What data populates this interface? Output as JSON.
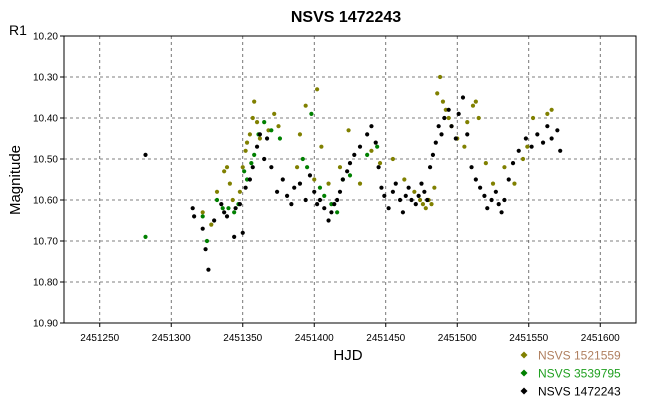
{
  "chart_data": {
    "type": "scatter",
    "title": "NSVS 1472243",
    "corner_label": "R1",
    "xlabel": "HJD",
    "ylabel": "Magnitude",
    "xlim": [
      2451225,
      2451625
    ],
    "ylim": [
      10.2,
      10.9
    ],
    "y_inverted": true,
    "grid": true,
    "legend_position": "bottom-right",
    "x_ticks": [
      {
        "value": 2451250,
        "label": "2451250"
      },
      {
        "value": 2451300,
        "label": "2451300"
      },
      {
        "value": 2451350,
        "label": "2451350"
      },
      {
        "value": 2451400,
        "label": "2451400"
      },
      {
        "value": 2451450,
        "label": "2451450"
      },
      {
        "value": 2451500,
        "label": "2451500"
      },
      {
        "value": 2451550,
        "label": "2451550"
      },
      {
        "value": 2451600,
        "label": "2451600"
      }
    ],
    "y_ticks": [
      {
        "value": 10.2,
        "label": "10.20"
      },
      {
        "value": 10.3,
        "label": "10.30"
      },
      {
        "value": 10.4,
        "label": "10.40"
      },
      {
        "value": 10.5,
        "label": "10.50"
      },
      {
        "value": 10.6,
        "label": "10.60"
      },
      {
        "value": 10.7,
        "label": "10.70"
      },
      {
        "value": 10.8,
        "label": "10.80"
      },
      {
        "value": 10.9,
        "label": "10.90"
      }
    ],
    "series": [
      {
        "name": "NSVS 1521559",
        "color": "#808000",
        "label_color": "#b08060",
        "points": [
          [
            2451322,
            10.63
          ],
          [
            2451328,
            10.66
          ],
          [
            2451332,
            10.58
          ],
          [
            2451337,
            10.53
          ],
          [
            2451339,
            10.52
          ],
          [
            2451341,
            10.56
          ],
          [
            2451343,
            10.6
          ],
          [
            2451348,
            10.58
          ],
          [
            2451350,
            10.52
          ],
          [
            2451352,
            10.48
          ],
          [
            2451353,
            10.46
          ],
          [
            2451355,
            10.44
          ],
          [
            2451357,
            10.4
          ],
          [
            2451358,
            10.36
          ],
          [
            2451360,
            10.41
          ],
          [
            2451362,
            10.45
          ],
          [
            2451368,
            10.43
          ],
          [
            2451372,
            10.39
          ],
          [
            2451375,
            10.42
          ],
          [
            2451388,
            10.52
          ],
          [
            2451390,
            10.44
          ],
          [
            2451394,
            10.37
          ],
          [
            2451400,
            10.55
          ],
          [
            2451402,
            10.33
          ],
          [
            2451405,
            10.47
          ],
          [
            2451410,
            10.56
          ],
          [
            2451418,
            10.52
          ],
          [
            2451424,
            10.43
          ],
          [
            2451432,
            10.56
          ],
          [
            2451440,
            10.48
          ],
          [
            2451446,
            10.51
          ],
          [
            2451455,
            10.5
          ],
          [
            2451463,
            10.55
          ],
          [
            2451470,
            10.58
          ],
          [
            2451474,
            10.6
          ],
          [
            2451476,
            10.61
          ],
          [
            2451478,
            10.62
          ],
          [
            2451480,
            10.6
          ],
          [
            2451482,
            10.61
          ],
          [
            2451484,
            10.57
          ],
          [
            2451486,
            10.34
          ],
          [
            2451488,
            10.3
          ],
          [
            2451490,
            10.36
          ],
          [
            2451492,
            10.38
          ],
          [
            2451494,
            10.4
          ],
          [
            2451496,
            10.42
          ],
          [
            2451500,
            10.45
          ],
          [
            2451505,
            10.47
          ],
          [
            2451507,
            10.41
          ],
          [
            2451511,
            10.37
          ],
          [
            2451513,
            10.36
          ],
          [
            2451515,
            10.4
          ],
          [
            2451520,
            10.51
          ],
          [
            2451525,
            10.56
          ],
          [
            2451533,
            10.52
          ],
          [
            2451540,
            10.56
          ],
          [
            2451546,
            10.5
          ],
          [
            2451549,
            10.47
          ],
          [
            2451553,
            10.4
          ],
          [
            2451563,
            10.39
          ],
          [
            2451566,
            10.38
          ]
        ]
      },
      {
        "name": "NSVS 3539795",
        "color": "#008000",
        "label_color": "#20a020",
        "points": [
          [
            2451282,
            10.69
          ],
          [
            2451322,
            10.64
          ],
          [
            2451325,
            10.7
          ],
          [
            2451332,
            10.6
          ],
          [
            2451336,
            10.62
          ],
          [
            2451340,
            10.62
          ],
          [
            2451344,
            10.63
          ],
          [
            2451347,
            10.61
          ],
          [
            2451351,
            10.53
          ],
          [
            2451353,
            10.55
          ],
          [
            2451356,
            10.51
          ],
          [
            2451358,
            10.49
          ],
          [
            2451361,
            10.44
          ],
          [
            2451365,
            10.41
          ],
          [
            2451370,
            10.43
          ],
          [
            2451376,
            10.45
          ],
          [
            2451392,
            10.5
          ],
          [
            2451395,
            10.52
          ],
          [
            2451398,
            10.39
          ],
          [
            2451404,
            10.57
          ],
          [
            2451407,
            10.59
          ],
          [
            2451412,
            10.61
          ],
          [
            2451416,
            10.63
          ],
          [
            2451420,
            10.55
          ],
          [
            2451425,
            10.54
          ],
          [
            2451437,
            10.49
          ],
          [
            2451444,
            10.47
          ]
        ]
      },
      {
        "name": "NSVS 1472243",
        "color": "#000000",
        "label_color": "#000000",
        "points": [
          [
            2451282,
            10.49
          ],
          [
            2451315,
            10.62
          ],
          [
            2451316,
            10.64
          ],
          [
            2451322,
            10.67
          ],
          [
            2451324,
            10.72
          ],
          [
            2451326,
            10.77
          ],
          [
            2451330,
            10.65
          ],
          [
            2451335,
            10.61
          ],
          [
            2451337,
            10.63
          ],
          [
            2451339,
            10.64
          ],
          [
            2451344,
            10.69
          ],
          [
            2451345,
            10.62
          ],
          [
            2451348,
            10.61
          ],
          [
            2451350,
            10.68
          ],
          [
            2451352,
            10.57
          ],
          [
            2451355,
            10.55
          ],
          [
            2451357,
            10.52
          ],
          [
            2451360,
            10.47
          ],
          [
            2451362,
            10.44
          ],
          [
            2451365,
            10.5
          ],
          [
            2451367,
            10.45
          ],
          [
            2451370,
            10.52
          ],
          [
            2451374,
            10.58
          ],
          [
            2451378,
            10.55
          ],
          [
            2451381,
            10.59
          ],
          [
            2451384,
            10.61
          ],
          [
            2451386,
            10.57
          ],
          [
            2451390,
            10.56
          ],
          [
            2451394,
            10.6
          ],
          [
            2451397,
            10.54
          ],
          [
            2451400,
            10.58
          ],
          [
            2451402,
            10.61
          ],
          [
            2451404,
            10.6
          ],
          [
            2451407,
            10.62
          ],
          [
            2451410,
            10.65
          ],
          [
            2451412,
            10.63
          ],
          [
            2451414,
            10.61
          ],
          [
            2451416,
            10.6
          ],
          [
            2451418,
            10.58
          ],
          [
            2451420,
            10.55
          ],
          [
            2451423,
            10.53
          ],
          [
            2451425,
            10.51
          ],
          [
            2451428,
            10.49
          ],
          [
            2451432,
            10.47
          ],
          [
            2451437,
            10.44
          ],
          [
            2451440,
            10.42
          ],
          [
            2451443,
            10.46
          ],
          [
            2451445,
            10.52
          ],
          [
            2451447,
            10.57
          ],
          [
            2451449,
            10.59
          ],
          [
            2451452,
            10.62
          ],
          [
            2451455,
            10.58
          ],
          [
            2451457,
            10.56
          ],
          [
            2451460,
            10.6
          ],
          [
            2451462,
            10.63
          ],
          [
            2451464,
            10.59
          ],
          [
            2451466,
            10.57
          ],
          [
            2451468,
            10.6
          ],
          [
            2451471,
            10.61
          ],
          [
            2451473,
            10.59
          ],
          [
            2451475,
            10.56
          ],
          [
            2451477,
            10.58
          ],
          [
            2451479,
            10.6
          ],
          [
            2451481,
            10.52
          ],
          [
            2451483,
            10.49
          ],
          [
            2451485,
            10.46
          ],
          [
            2451487,
            10.42
          ],
          [
            2451489,
            10.44
          ],
          [
            2451491,
            10.4
          ],
          [
            2451494,
            10.38
          ],
          [
            2451496,
            10.42
          ],
          [
            2451499,
            10.45
          ],
          [
            2451501,
            10.39
          ],
          [
            2451504,
            10.35
          ],
          [
            2451507,
            10.44
          ],
          [
            2451510,
            10.52
          ],
          [
            2451513,
            10.55
          ],
          [
            2451516,
            10.57
          ],
          [
            2451519,
            10.59
          ],
          [
            2451521,
            10.62
          ],
          [
            2451524,
            10.6
          ],
          [
            2451527,
            10.58
          ],
          [
            2451529,
            10.61
          ],
          [
            2451531,
            10.63
          ],
          [
            2451533,
            10.6
          ],
          [
            2451536,
            10.55
          ],
          [
            2451539,
            10.51
          ],
          [
            2451543,
            10.48
          ],
          [
            2451548,
            10.45
          ],
          [
            2451552,
            10.47
          ],
          [
            2451556,
            10.44
          ],
          [
            2451560,
            10.46
          ],
          [
            2451563,
            10.42
          ],
          [
            2451566,
            10.45
          ],
          [
            2451570,
            10.43
          ],
          [
            2451572,
            10.48
          ]
        ]
      }
    ]
  }
}
